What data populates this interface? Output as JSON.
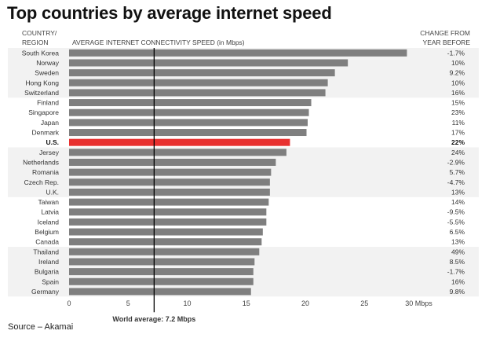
{
  "title": "Top countries by average internet speed",
  "headers": {
    "country_line1": "COUNTRY/",
    "country_line2": "REGION",
    "speed": "AVERAGE INTERNET CONNECTIVITY SPEED (in Mbps)",
    "change_line1": "CHANGE FROM",
    "change_line2": "YEAR BEFORE"
  },
  "source": "Source – Akamai",
  "colors": {
    "bar": "#7f7f7f",
    "highlight_bar": "#e8302f",
    "row_band": "#f2f2f2",
    "average_line": "#000000"
  },
  "chart_data": {
    "type": "bar",
    "orientation": "horizontal",
    "categories": [
      "South Korea",
      "Norway",
      "Sweden",
      "Hong Kong",
      "Switzerland",
      "Finland",
      "Singapore",
      "Japan",
      "Denmark",
      "U.S.",
      "Jersey",
      "Netherlands",
      "Romania",
      "Czech Rep.",
      "U.K.",
      "Taiwan",
      "Latvia",
      "Iceland",
      "Belgium",
      "Canada",
      "Thailand",
      "Ireland",
      "Bulgaria",
      "Spain",
      "Germany"
    ],
    "values": [
      28.6,
      23.6,
      22.5,
      21.9,
      21.7,
      20.5,
      20.3,
      20.2,
      20.1,
      18.7,
      18.4,
      17.5,
      17.1,
      17.0,
      17.0,
      16.9,
      16.7,
      16.7,
      16.4,
      16.3,
      16.1,
      15.7,
      15.6,
      15.6,
      15.4
    ],
    "changes": [
      "-1.7%",
      "10%",
      "9.2%",
      "10%",
      "16%",
      "15%",
      "23%",
      "11%",
      "17%",
      "22%",
      "24%",
      "-2.9%",
      "5.7%",
      "-4.7%",
      "13%",
      "14%",
      "-9.5%",
      "-5.5%",
      "6.5%",
      "13%",
      "49%",
      "8.5%",
      "-1.7%",
      "16%",
      "9.8%"
    ],
    "highlight": "U.S.",
    "xlim": [
      0,
      30
    ],
    "x_ticks": [
      "0",
      "5",
      "10",
      "15",
      "20",
      "25",
      "30 Mbps"
    ],
    "x_tick_values": [
      0,
      5,
      10,
      15,
      20,
      25,
      30
    ],
    "reference_line": {
      "value": 7.2,
      "label": "World average: 7.2 Mbps"
    },
    "grid": false
  }
}
